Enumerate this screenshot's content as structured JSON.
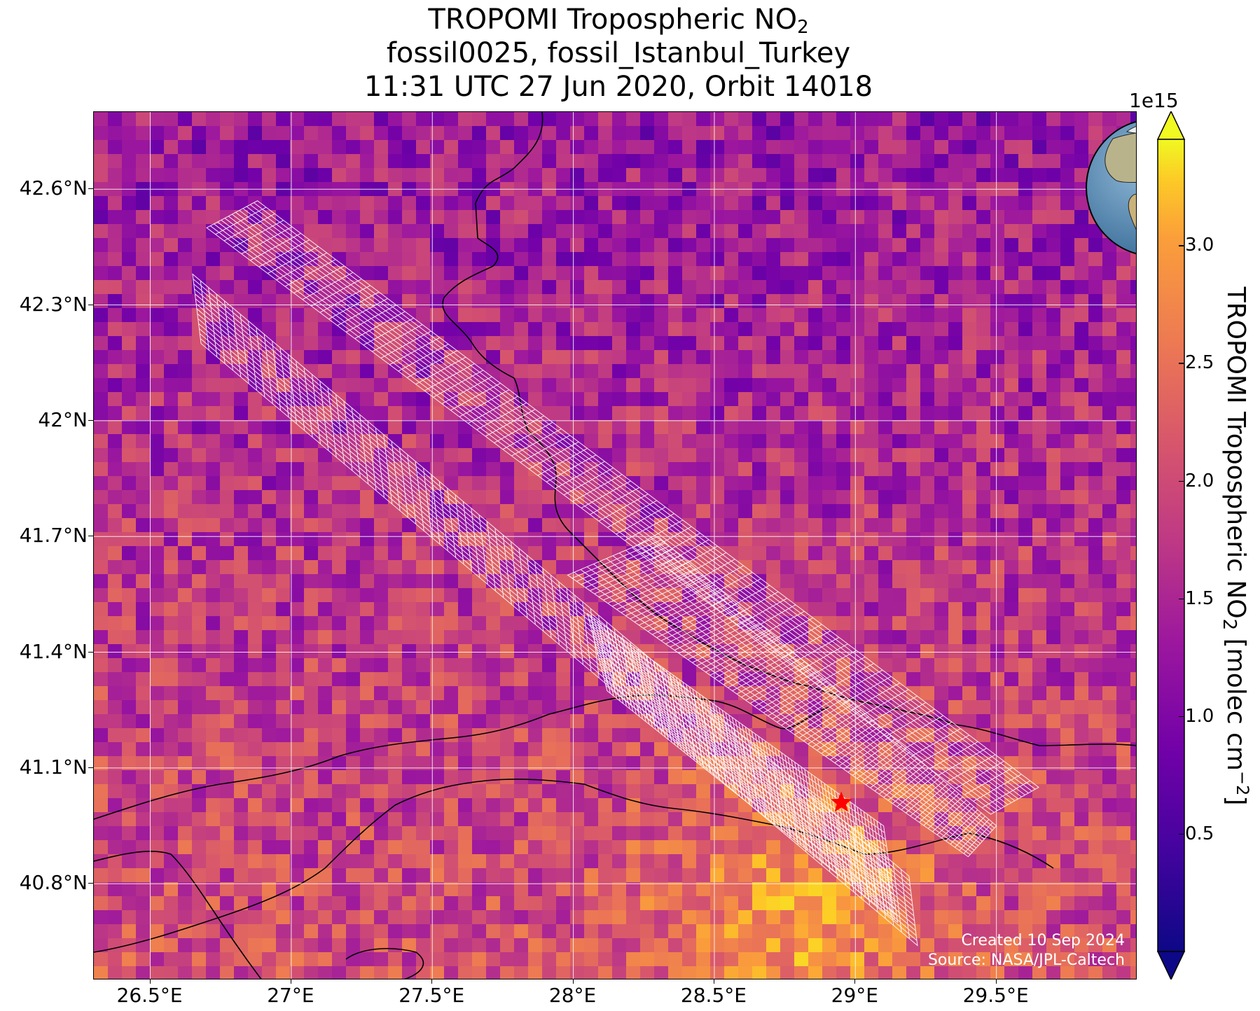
{
  "title": {
    "line1_pre": "TROPOMI Tropospheric NO",
    "line1_sub": "2",
    "line2": "fossil0025, fossil_Istanbul_Turkey",
    "line3": "11:31 UTC 27 Jun 2020, Orbit 14018"
  },
  "map": {
    "lon_range": [
      26.3,
      30.0
    ],
    "lat_range": [
      40.55,
      42.8
    ],
    "lon_ticks": [
      {
        "value": 26.5,
        "label": "26.5°E"
      },
      {
        "value": 27.0,
        "label": "27°E"
      },
      {
        "value": 27.5,
        "label": "27.5°E"
      },
      {
        "value": 28.0,
        "label": "28°E"
      },
      {
        "value": 28.5,
        "label": "28.5°E"
      },
      {
        "value": 29.0,
        "label": "29°E"
      },
      {
        "value": 29.5,
        "label": "29.5°E"
      }
    ],
    "lat_ticks": [
      {
        "value": 42.6,
        "label": "42.6°N"
      },
      {
        "value": 42.3,
        "label": "42.3°N"
      },
      {
        "value": 42.0,
        "label": "42°N"
      },
      {
        "value": 41.7,
        "label": "41.7°N"
      },
      {
        "value": 41.4,
        "label": "41.4°N"
      },
      {
        "value": 41.1,
        "label": "41.1°N"
      },
      {
        "value": 40.8,
        "label": "40.8°N"
      }
    ],
    "target": {
      "name": "fossil_Istanbul_Turkey",
      "lon": 28.95,
      "lat": 41.01,
      "marker": "star",
      "color": "#ff0000"
    },
    "grid": true,
    "colormap": "plasma",
    "swaths": [
      {
        "corners": [
          [
            26.7,
            42.5
          ],
          [
            26.88,
            42.57
          ],
          [
            29.65,
            41.05
          ],
          [
            29.48,
            40.98
          ]
        ]
      },
      {
        "corners": [
          [
            26.65,
            42.38
          ],
          [
            26.68,
            42.2
          ],
          [
            29.22,
            40.64
          ],
          [
            29.19,
            40.82
          ]
        ]
      },
      {
        "corners": [
          [
            27.98,
            41.6
          ],
          [
            28.3,
            41.7
          ],
          [
            29.5,
            40.95
          ],
          [
            29.4,
            40.87
          ]
        ]
      },
      {
        "corners": [
          [
            28.05,
            41.5
          ],
          [
            28.12,
            41.3
          ],
          [
            29.15,
            40.7
          ],
          [
            29.1,
            40.95
          ]
        ]
      }
    ]
  },
  "colorbar": {
    "exponent_label": "1e15",
    "min": 0.0,
    "max": 3.45,
    "ticks": [
      {
        "value": 0.5,
        "label": "0.5"
      },
      {
        "value": 1.0,
        "label": "1.0"
      },
      {
        "value": 1.5,
        "label": "1.5"
      },
      {
        "value": 2.0,
        "label": "2.0"
      },
      {
        "value": 2.5,
        "label": "2.5"
      },
      {
        "value": 3.0,
        "label": "3.0"
      }
    ],
    "label_pre": "TROPOMI Tropospheric NO",
    "label_sub": "2",
    "label_post": " [molec cm",
    "label_sup": "−2",
    "label_end": "]"
  },
  "credit": {
    "line1": "Created 10 Sep 2024",
    "line2": "Source: NASA/JPL-Caltech"
  },
  "inset": {
    "icon": "globe-icon",
    "marker_color": "#ff0000"
  }
}
